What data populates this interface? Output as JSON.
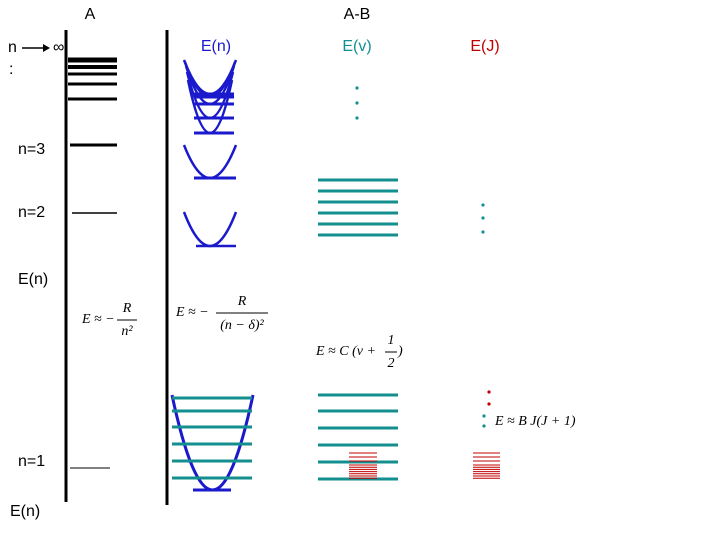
{
  "header": {
    "atom": "A",
    "molecule": "A-B"
  },
  "atom_column": {
    "n_label": "n",
    "infinity": "∞",
    "ellipsis": ":",
    "levels": [
      "n=3",
      "n=2",
      "n=1"
    ],
    "energy_label": "E(n)",
    "axis_label": "E(n)",
    "formula": {
      "lhs": "E ≈ −",
      "numerator": "R",
      "denominator": "n²"
    }
  },
  "molecule_columns": [
    {
      "title": "E(n)",
      "formula": {
        "lhs": "E ≈ −",
        "numerator": "R",
        "denominator": "(n − δ)²"
      }
    },
    {
      "title": "E(v)",
      "formula": {
        "lhs": "E ≈ C (v +",
        "numerator": "1",
        "denominator": "2",
        "rhs": ")"
      }
    },
    {
      "title": "E(J)",
      "formula": {
        "lhs": "E ≈ B J(J + 1)"
      }
    }
  ]
}
